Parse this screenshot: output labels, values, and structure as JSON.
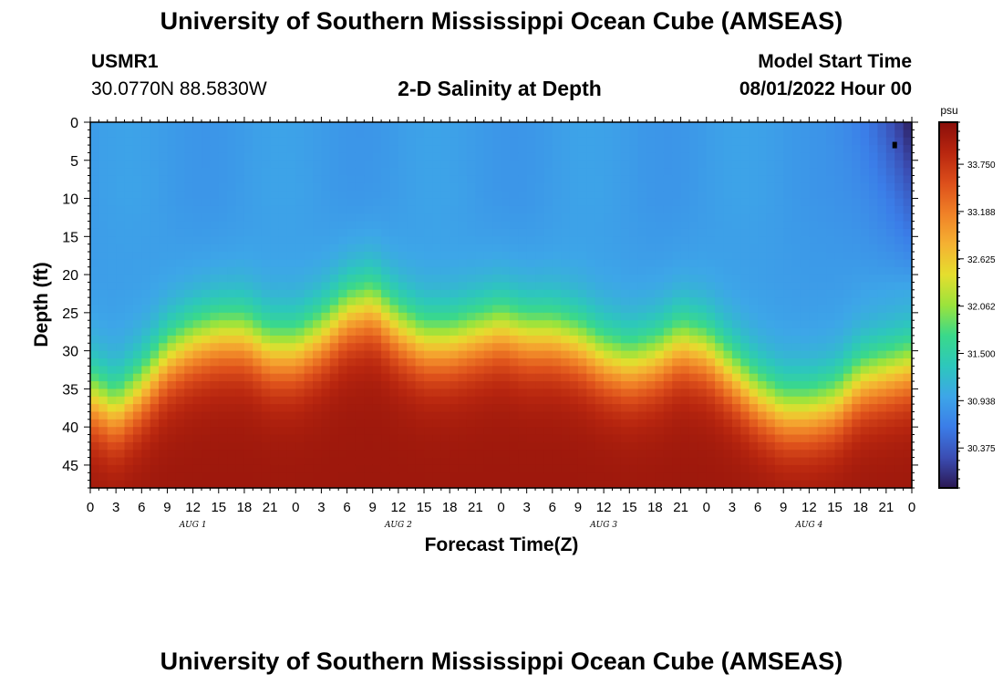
{
  "page": {
    "title": "University of Southern Mississippi Ocean Cube (AMSEAS)",
    "station_id": "USMR1",
    "station_coords": "30.0770N  88.5830W",
    "chart_heading": "2-D Salinity at Depth",
    "model_start_label": "Model Start Time",
    "model_start_value": "08/01/2022 Hour 00",
    "footer_title": "University of Southern Mississippi Ocean Cube (AMSEAS)"
  },
  "chart_data": {
    "type": "heatmap",
    "title": "2-D Salinity at Depth",
    "xlabel": "Forecast Time(Z)",
    "ylabel": "Depth (ft)",
    "x_unit": "hours since 08/01/2022 00Z",
    "xlim": [
      0,
      96
    ],
    "ylim": [
      0,
      48
    ],
    "y_inverted": true,
    "x_tick_labels": [
      "0",
      "3",
      "6",
      "9",
      "12",
      "15",
      "18",
      "21",
      "0",
      "3",
      "6",
      "9",
      "12",
      "15",
      "18",
      "21",
      "0",
      "3",
      "6",
      "9",
      "12",
      "15",
      "18",
      "21",
      "0",
      "3",
      "6",
      "9",
      "12",
      "15",
      "18",
      "21",
      "0"
    ],
    "x_tick_step_hours": 3,
    "day_labels": [
      "AUG 1",
      "AUG 2",
      "AUG 3",
      "AUG 4"
    ],
    "day_label_hours": [
      12,
      36,
      60,
      84
    ],
    "y_tick_labels": [
      "0",
      "5",
      "10",
      "15",
      "20",
      "25",
      "30",
      "35",
      "40",
      "45"
    ],
    "y_tick_values": [
      0,
      5,
      10,
      15,
      20,
      25,
      30,
      35,
      40,
      45
    ],
    "colorbar": {
      "unit": "psu",
      "range": [
        29.9,
        34.25
      ],
      "tick_labels": [
        "33.750",
        "33.188",
        "32.625",
        "32.062",
        "31.500",
        "30.938",
        "30.375"
      ],
      "tick_values": [
        33.75,
        33.188,
        32.625,
        32.062,
        31.5,
        30.938,
        30.375
      ],
      "colors": [
        "#2b1853",
        "#3b4db3",
        "#3b7de8",
        "#3da6e8",
        "#2dc7bc",
        "#3ad98a",
        "#9be33c",
        "#e5de2e",
        "#f5b132",
        "#f08127",
        "#dd4f1b",
        "#b8260f",
        "#8a0e0a"
      ]
    },
    "surface_salinity_psu": 30.9,
    "deep_salinity_psu": 34.1,
    "halocline_depth_ft": {
      "hours": [
        0,
        3,
        6,
        9,
        12,
        15,
        18,
        21,
        24,
        27,
        30,
        33,
        36,
        39,
        42,
        45,
        48,
        51,
        54,
        57,
        60,
        63,
        66,
        69,
        72,
        75,
        78,
        81,
        84,
        87,
        90,
        93,
        96
      ],
      "depth": [
        33,
        35,
        32,
        28,
        26,
        25,
        25,
        27,
        27,
        25,
        22,
        21,
        24,
        26,
        26,
        25,
        24,
        25,
        25,
        26,
        28,
        29,
        28,
        26,
        27,
        30,
        33,
        35,
        35,
        34,
        31,
        30,
        29
      ]
    },
    "surface_low_region": {
      "hours": [
        84,
        96
      ],
      "depth": [
        0,
        18
      ],
      "min_salinity_psu": 29.95
    },
    "marker": {
      "hour": 94,
      "depth_ft": 3
    }
  }
}
